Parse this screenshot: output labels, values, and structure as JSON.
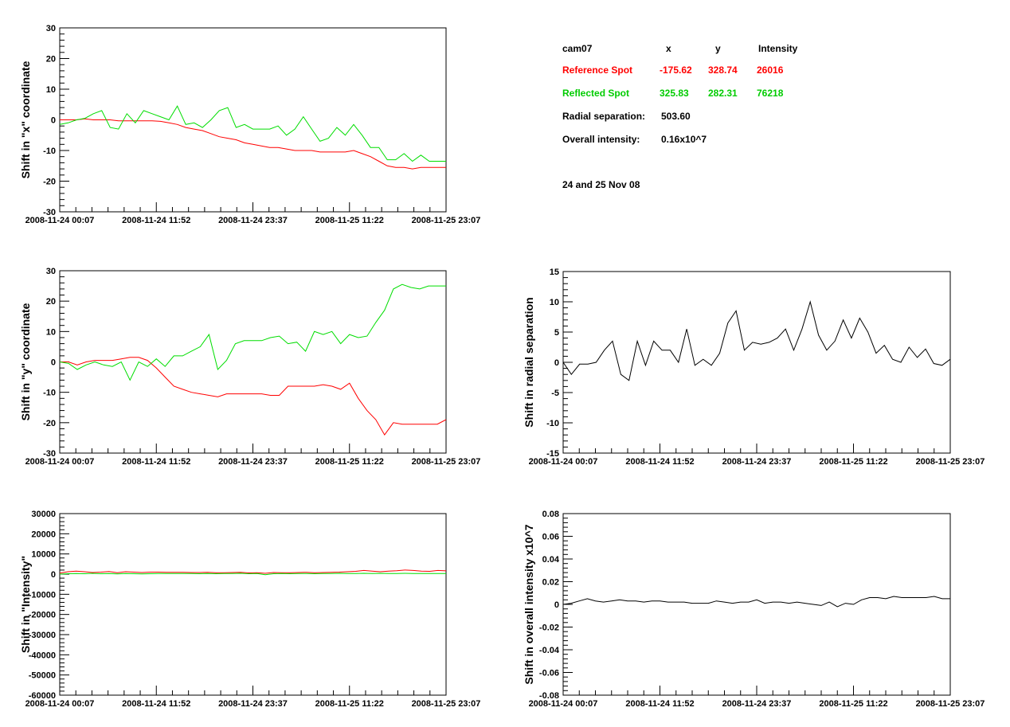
{
  "info": {
    "cam": "cam07",
    "col_x": "x",
    "col_y": "y",
    "col_int": "Intensity",
    "ref_label": "Reference Spot",
    "ref_x": "-175.62",
    "ref_y": "328.74",
    "ref_int": "26016",
    "refl_label": "Reflected Spot",
    "refl_x": "325.83",
    "refl_y": "282.31",
    "refl_int": "76218",
    "radial_label": "Radial separation:",
    "radial_value": "503.60",
    "overall_label": "Overall intensity:",
    "overall_value": "0.16x10^7",
    "date_note": "24 and 25 Nov 08"
  },
  "colors": {
    "reference": "#ff0000",
    "reflected": "#00dd00",
    "single": "#000000"
  },
  "chart_data": [
    {
      "id": "x-shift",
      "type": "line",
      "ylabel": "Shift in \"x\" coordinate",
      "ylim": [
        -30,
        30
      ],
      "yticks": [
        -30,
        -20,
        -10,
        0,
        10,
        20,
        30
      ],
      "xticks": [
        "2008-11-24 00:07",
        "2008-11-24 11:52",
        "2008-11-24 23:37",
        "2008-11-25 11:22",
        "2008-11-25 23:07"
      ],
      "series": [
        {
          "color_key": "reference",
          "values": [
            0,
            0,
            0,
            0.3,
            0,
            0,
            0,
            -0.3,
            -0.3,
            -0.3,
            -0.3,
            -0.3,
            -0.5,
            -1,
            -1.5,
            -2.5,
            -3,
            -3.5,
            -4.5,
            -5.5,
            -6,
            -6.5,
            -7.5,
            -8,
            -8.5,
            -9,
            -9,
            -9.5,
            -10,
            -10,
            -10,
            -10.5,
            -10.5,
            -10.5,
            -10.5,
            -10,
            -11,
            -12,
            -13.5,
            -15,
            -15.5,
            -15.5,
            -16,
            -15.5,
            -15.5,
            -15.5,
            -15.5
          ]
        },
        {
          "color_key": "reflected",
          "values": [
            -1.5,
            -1,
            0,
            0.5,
            2,
            3,
            -2.5,
            -3,
            2,
            -1,
            3,
            2,
            1,
            0,
            4.5,
            -1.5,
            -1,
            -2.5,
            0,
            3,
            4,
            -2.5,
            -1.5,
            -3,
            -3,
            -3,
            -2,
            -5,
            -3,
            1,
            -3,
            -7,
            -6,
            -2.5,
            -5,
            -1.5,
            -5,
            -9,
            -9,
            -13,
            -13,
            -11,
            -13.5,
            -11.5,
            -13.5,
            -13.5,
            -13.5
          ]
        }
      ]
    },
    {
      "id": "y-shift",
      "type": "line",
      "ylabel": "Shift in \"y\" coordinate",
      "ylim": [
        -30,
        30
      ],
      "yticks": [
        -30,
        -20,
        -10,
        0,
        10,
        20,
        30
      ],
      "xticks": [
        "2008-11-24 00:07",
        "2008-11-24 11:52",
        "2008-11-24 23:37",
        "2008-11-25 11:22",
        "2008-11-25 23:07"
      ],
      "series": [
        {
          "color_key": "reference",
          "values": [
            0,
            0,
            -1,
            0,
            0.5,
            0.5,
            0.5,
            1,
            1.5,
            1.5,
            0.5,
            -2,
            -5,
            -8,
            -9,
            -10,
            -10.5,
            -11,
            -11.5,
            -10.5,
            -10.5,
            -10.5,
            -10.5,
            -10.5,
            -11,
            -11,
            -8,
            -8,
            -8,
            -8,
            -7.5,
            -8,
            -9,
            -7,
            -12,
            -16,
            -19,
            -24,
            -20,
            -20.5,
            -20.5,
            -20.5,
            -20.5,
            -20.5,
            -19
          ]
        },
        {
          "color_key": "reflected",
          "values": [
            0,
            -0.5,
            -2.5,
            -1,
            0,
            -1,
            -1.5,
            0,
            -6,
            0,
            -1.5,
            1,
            -1.5,
            2,
            2,
            3.5,
            5,
            9,
            -2.5,
            0.5,
            6,
            7,
            7,
            7,
            8,
            8.5,
            6,
            6.5,
            3.5,
            10,
            9,
            10,
            6,
            9,
            8,
            8.5,
            13,
            17,
            24,
            25.5,
            24.5,
            24,
            25,
            25,
            25
          ]
        }
      ]
    },
    {
      "id": "radial-shift",
      "type": "line",
      "ylabel": "Shift in radial separation",
      "ylim": [
        -15,
        15
      ],
      "yticks": [
        -15,
        -10,
        -5,
        0,
        5,
        10,
        15
      ],
      "xticks": [
        "2008-11-24 00:07",
        "2008-11-24 11:52",
        "2008-11-24 23:37",
        "2008-11-25 11:22",
        "2008-11-25 23:07"
      ],
      "series": [
        {
          "color_key": "single",
          "values": [
            0,
            -2,
            -0.3,
            -0.3,
            0,
            2,
            3.5,
            -2,
            -3,
            3.5,
            -0.5,
            3.5,
            2,
            2,
            0,
            5.5,
            -0.5,
            0.5,
            -0.5,
            1.5,
            6.5,
            8.5,
            2,
            3.3,
            3,
            3.3,
            4,
            5.5,
            2,
            5.5,
            10,
            4.5,
            2,
            3.5,
            7,
            4,
            7.3,
            5,
            1.5,
            2.8,
            0.5,
            0,
            2.5,
            0.8,
            2.2,
            -0.2,
            -0.5,
            0.5
          ]
        }
      ]
    },
    {
      "id": "intensity-shift",
      "type": "line",
      "ylabel": "Shift in \"Intensity\"",
      "ylim": [
        -60000,
        30000
      ],
      "yticks": [
        -60000,
        -50000,
        -40000,
        -30000,
        -20000,
        -10000,
        0,
        10000,
        20000,
        30000
      ],
      "xticks": [
        "2008-11-24 00:07",
        "2008-11-24 11:52",
        "2008-11-24 23:37",
        "2008-11-25 11:22",
        "2008-11-25 23:07"
      ],
      "series": [
        {
          "color_key": "reference",
          "values": [
            500,
            1200,
            1500,
            1200,
            800,
            1000,
            1300,
            700,
            1200,
            1000,
            800,
            1000,
            1000,
            900,
            900,
            900,
            800,
            800,
            900,
            700,
            700,
            800,
            900,
            600,
            700,
            400,
            800,
            700,
            700,
            800,
            900,
            700,
            800,
            900,
            1000,
            1200,
            1400,
            1800,
            1500,
            1200,
            1500,
            1700,
            2000,
            1800,
            1500,
            1400,
            1800,
            1600
          ]
        },
        {
          "color_key": "reflected",
          "values": [
            0,
            200,
            300,
            200,
            400,
            200,
            300,
            100,
            300,
            200,
            100,
            200,
            300,
            300,
            300,
            300,
            300,
            200,
            300,
            200,
            300,
            300,
            400,
            200,
            300,
            -300,
            200,
            300,
            200,
            300,
            300,
            200,
            300,
            300,
            400,
            300,
            300,
            400,
            300,
            400,
            300,
            300,
            400,
            300,
            300,
            300,
            300,
            300
          ]
        }
      ]
    },
    {
      "id": "overall-intensity-shift",
      "type": "line",
      "ylabel": "Shift in overall intensity x10^7",
      "ylim": [
        -0.08,
        0.08
      ],
      "yticks": [
        -0.08,
        -0.06,
        -0.04,
        -0.02,
        0,
        0.02,
        0.04,
        0.06,
        0.08
      ],
      "xticks": [
        "2008-11-24 00:07",
        "2008-11-24 11:52",
        "2008-11-24 23:37",
        "2008-11-25 11:22",
        "2008-11-25 23:07"
      ],
      "series": [
        {
          "color_key": "single",
          "values": [
            0,
            0.001,
            0.003,
            0.005,
            0.003,
            0.002,
            0.003,
            0.004,
            0.003,
            0.003,
            0.002,
            0.003,
            0.003,
            0.002,
            0.002,
            0.002,
            0.001,
            0.001,
            0.001,
            0.003,
            0.002,
            0.001,
            0.002,
            0.002,
            0.004,
            0.001,
            0.002,
            0.002,
            0.001,
            0.002,
            0.001,
            0.0,
            -0.001,
            0.002,
            -0.002,
            0.001,
            0.0,
            0.004,
            0.006,
            0.006,
            0.005,
            0.007,
            0.006,
            0.006,
            0.006,
            0.006,
            0.007,
            0.005,
            0.005
          ]
        }
      ]
    }
  ]
}
